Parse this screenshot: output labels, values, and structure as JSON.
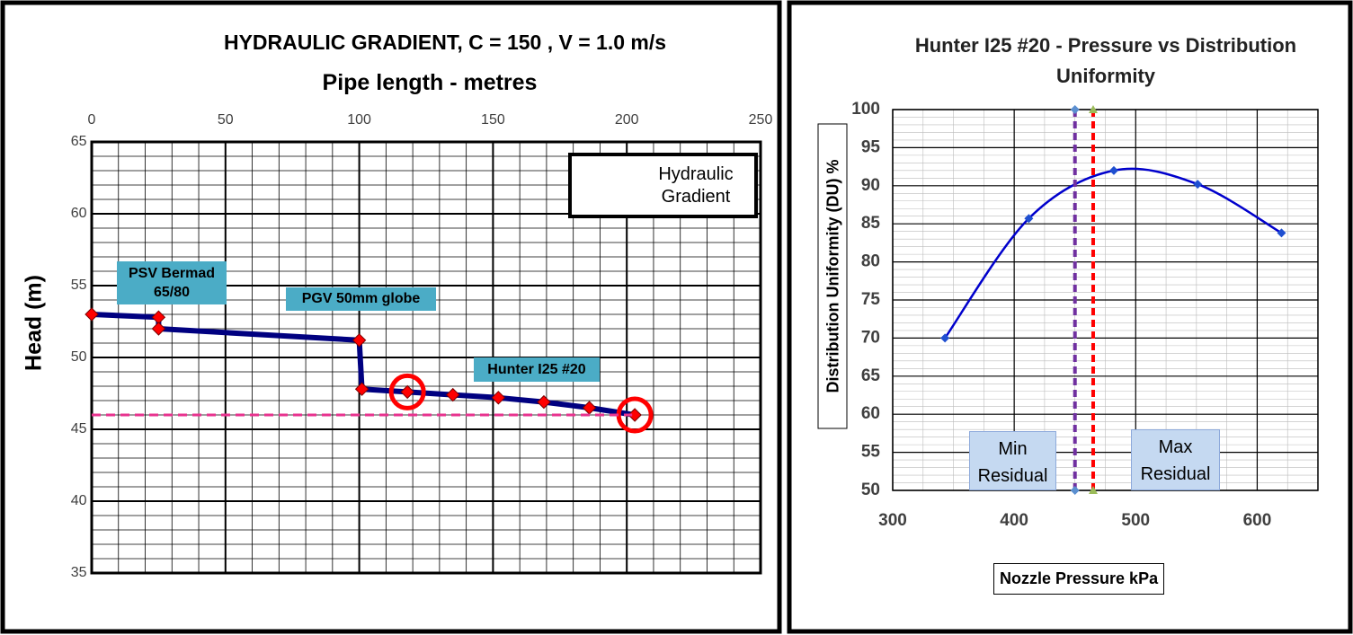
{
  "chart_data": [
    {
      "type": "line",
      "title": "HYDRAULIC GRADIENT,  C = 150 ,  V = 1.0 m/s",
      "x_label": "Pipe length - metres",
      "y_label": "Head (m)",
      "xlim": [
        0,
        250
      ],
      "xticks": [
        0,
        50,
        100,
        150,
        200,
        250
      ],
      "ylim": [
        35,
        65
      ],
      "yticks": [
        35,
        40,
        45,
        50,
        55,
        60,
        65
      ],
      "grid": true,
      "minor_grid": {
        "x": 10,
        "y": 1
      },
      "x_axis_position": "top",
      "legend": "upper right",
      "series": [
        {
          "name": "Hydraulic Gradient",
          "color": "#000080",
          "marker": "diamond",
          "marker_color": "#ff0000",
          "x": [
            0,
            25,
            25,
            100,
            101,
            118,
            135,
            152,
            169,
            186,
            203
          ],
          "values": [
            53,
            52.8,
            52,
            51.2,
            47.8,
            47.6,
            47.4,
            47.2,
            46.9,
            46.5,
            46
          ],
          "highlight_points": [
            5,
            10
          ]
        },
        {
          "color": "#e8338f",
          "dashed": true,
          "marker": "none",
          "x": [
            0,
            202
          ],
          "values": [
            46,
            46
          ]
        }
      ],
      "annotations": [
        "PSV Bermad 65/80",
        "PGV 50mm globe",
        "Hunter I25 #20"
      ]
    },
    {
      "type": "line",
      "title": "Hunter I25 #20 - Pressure vs Distribution Uniformity",
      "x_label": "Nozzle Pressure kPa",
      "y_label": "Distribution Uniformity (DU) %",
      "xlim": [
        300,
        650
      ],
      "xticks": [
        300,
        400,
        500,
        600
      ],
      "ylim": [
        50,
        100
      ],
      "yticks": [
        50,
        55,
        60,
        65,
        70,
        75,
        80,
        85,
        90,
        95,
        100
      ],
      "grid": true,
      "minor_grid": {
        "x": 25,
        "y": 1
      },
      "x_axis_position": "bottom",
      "series": [
        {
          "color": "#0000cc",
          "smooth": true,
          "marker": "diamond",
          "marker_color": "#1f4fd0",
          "x": [
            343,
            412,
            482,
            551,
            620
          ],
          "values": [
            70,
            85.7,
            92,
            90.2,
            83.8
          ]
        },
        {
          "name": "Min Residual",
          "color": "#7030a0",
          "dashed": true,
          "marker": "diamond",
          "marker_color": "#5b8fd0",
          "x": [
            450,
            450
          ],
          "values": [
            50,
            100
          ]
        },
        {
          "name": "Max Residual",
          "color": "#ff0000",
          "dashed": true,
          "marker": "triangle",
          "marker_color": "#9bbb59",
          "x": [
            465,
            465
          ],
          "values": [
            50,
            100
          ]
        }
      ]
    }
  ]
}
